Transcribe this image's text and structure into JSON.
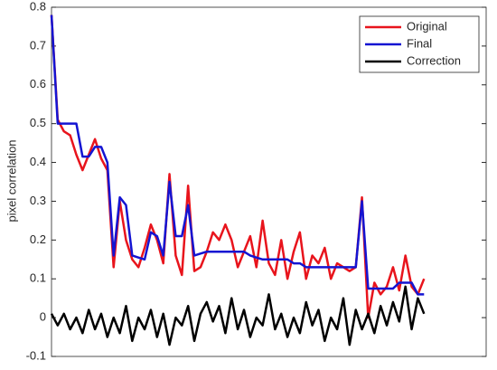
{
  "chart_data": {
    "type": "line",
    "ylabel": "pixel correlation",
    "x": [
      0,
      2,
      4,
      6,
      8,
      10,
      12,
      14,
      16,
      18,
      20,
      22,
      24,
      26,
      28,
      30,
      32,
      34,
      36,
      38,
      40,
      42,
      44,
      46,
      48,
      50,
      52,
      54,
      56,
      58,
      60,
      62,
      64,
      66,
      68,
      70,
      72,
      74,
      76,
      78,
      80,
      82,
      84,
      86,
      88,
      90,
      92,
      94,
      96,
      98,
      100,
      102,
      104,
      106,
      108,
      110,
      112,
      114,
      116,
      118,
      120
    ],
    "series": [
      {
        "name": "Original",
        "color": "#e8141c",
        "values": [
          0.78,
          0.51,
          0.48,
          0.47,
          0.42,
          0.38,
          0.42,
          0.46,
          0.41,
          0.38,
          0.13,
          0.3,
          0.2,
          0.15,
          0.13,
          0.18,
          0.24,
          0.2,
          0.14,
          0.37,
          0.16,
          0.11,
          0.34,
          0.12,
          0.13,
          0.17,
          0.22,
          0.2,
          0.24,
          0.2,
          0.13,
          0.17,
          0.21,
          0.13,
          0.25,
          0.14,
          0.11,
          0.2,
          0.1,
          0.17,
          0.22,
          0.1,
          0.16,
          0.14,
          0.18,
          0.1,
          0.14,
          0.13,
          0.12,
          0.13,
          0.31,
          0.0,
          0.09,
          0.06,
          0.08,
          0.13,
          0.07,
          0.16,
          0.08,
          0.06,
          0.1
        ]
      },
      {
        "name": "Final",
        "color": "#1414d2",
        "values": [
          0.78,
          0.5,
          0.5,
          0.5,
          0.5,
          0.415,
          0.415,
          0.44,
          0.44,
          0.4,
          0.16,
          0.31,
          0.29,
          0.16,
          0.155,
          0.15,
          0.22,
          0.21,
          0.16,
          0.35,
          0.21,
          0.21,
          0.29,
          0.16,
          0.165,
          0.17,
          0.17,
          0.17,
          0.17,
          0.17,
          0.17,
          0.17,
          0.16,
          0.155,
          0.15,
          0.15,
          0.15,
          0.15,
          0.15,
          0.14,
          0.14,
          0.13,
          0.13,
          0.13,
          0.13,
          0.13,
          0.13,
          0.13,
          0.13,
          0.13,
          0.3,
          0.075,
          0.075,
          0.075,
          0.075,
          0.075,
          0.09,
          0.09,
          0.09,
          0.06,
          0.06
        ]
      },
      {
        "name": "Correction",
        "color": "#000000",
        "values": [
          0.01,
          -0.02,
          0.01,
          -0.03,
          0.0,
          -0.04,
          0.02,
          -0.03,
          0.01,
          -0.05,
          0.0,
          -0.04,
          0.03,
          -0.06,
          0.0,
          -0.03,
          0.02,
          -0.05,
          0.01,
          -0.07,
          0.0,
          -0.02,
          0.03,
          -0.06,
          0.01,
          0.04,
          -0.01,
          0.03,
          -0.04,
          0.05,
          -0.03,
          0.02,
          -0.05,
          0.0,
          -0.02,
          0.06,
          -0.03,
          0.01,
          -0.05,
          0.0,
          -0.04,
          0.04,
          -0.02,
          0.02,
          -0.06,
          0.0,
          -0.03,
          0.05,
          -0.07,
          0.02,
          -0.03,
          0.01,
          -0.04,
          0.03,
          -0.02,
          0.04,
          -0.01,
          0.08,
          -0.03,
          0.05,
          0.01
        ]
      }
    ],
    "xlim": [
      0,
      140
    ],
    "ylim": [
      -0.1,
      0.8
    ],
    "yticks": [
      0.8,
      0.7,
      0.6,
      0.5,
      0.4,
      0.3,
      0.2,
      0.1,
      0,
      -0.1
    ],
    "legend": "top-right",
    "grid": false
  }
}
